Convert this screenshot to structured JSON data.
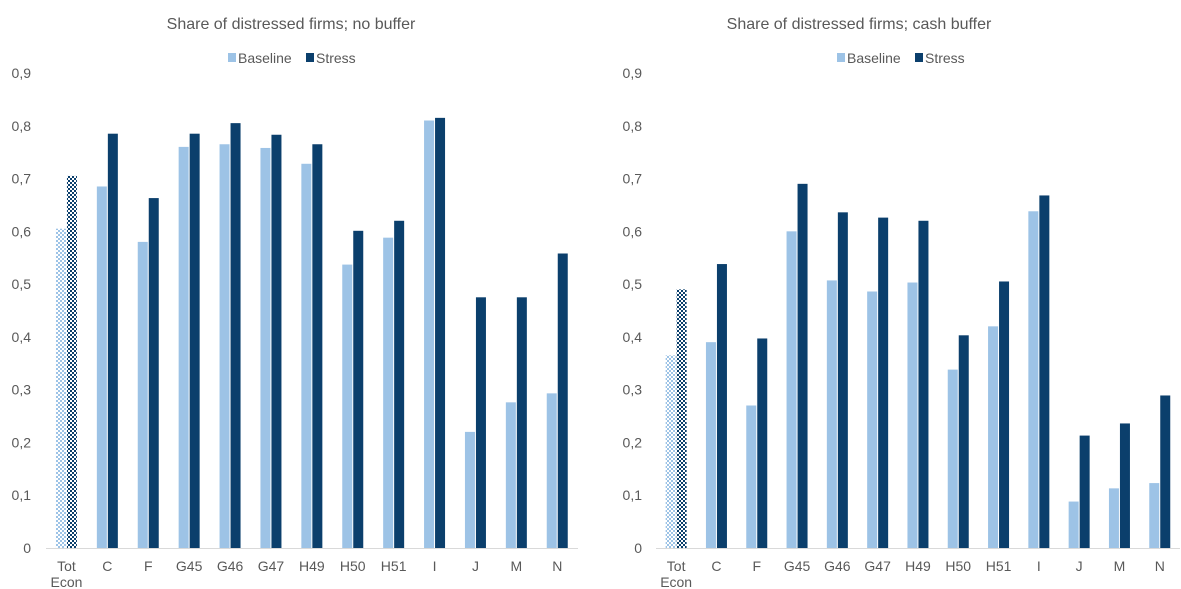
{
  "colors": {
    "baseline": "#9dc3e6",
    "stress": "#0b3f6c",
    "axis": "#d9d9d9",
    "text": "#595959"
  },
  "chart_data": [
    {
      "type": "bar",
      "title": "Share of distressed firms; no buffer",
      "legend": {
        "position": "top",
        "entries": [
          "Baseline",
          "Stress"
        ]
      },
      "categories": [
        [
          "Tot",
          "Econ"
        ],
        [
          "C"
        ],
        [
          "F"
        ],
        [
          "G45"
        ],
        [
          "G46"
        ],
        [
          "G47"
        ],
        [
          "H49"
        ],
        [
          "H50"
        ],
        [
          "H51"
        ],
        [
          "I"
        ],
        [
          "J"
        ],
        [
          "M"
        ],
        [
          "N"
        ]
      ],
      "series": [
        {
          "name": "Baseline",
          "values": [
            0.605,
            0.685,
            0.58,
            0.76,
            0.765,
            0.758,
            0.728,
            0.537,
            0.588,
            0.81,
            0.22,
            0.276,
            0.293
          ]
        },
        {
          "name": "Stress",
          "values": [
            0.705,
            0.785,
            0.663,
            0.785,
            0.805,
            0.783,
            0.765,
            0.601,
            0.62,
            0.815,
            0.475,
            0.475,
            0.558
          ]
        }
      ],
      "patterned_categories": [
        0
      ],
      "ylim": [
        0,
        0.9
      ],
      "yticks": [
        "0",
        "0,1",
        "0,2",
        "0,3",
        "0,4",
        "0,5",
        "0,6",
        "0,7",
        "0,8",
        "0,9"
      ],
      "grid": false
    },
    {
      "type": "bar",
      "title": "Share of distressed firms; cash buffer",
      "legend": {
        "position": "top",
        "entries": [
          "Baseline",
          "Stress"
        ]
      },
      "categories": [
        [
          "Tot",
          "Econ"
        ],
        [
          "C"
        ],
        [
          "F"
        ],
        [
          "G45"
        ],
        [
          "G46"
        ],
        [
          "G47"
        ],
        [
          "H49"
        ],
        [
          "H50"
        ],
        [
          "H51"
        ],
        [
          "I"
        ],
        [
          "J"
        ],
        [
          "M"
        ],
        [
          "N"
        ]
      ],
      "series": [
        {
          "name": "Baseline",
          "values": [
            0.365,
            0.39,
            0.27,
            0.6,
            0.507,
            0.486,
            0.503,
            0.338,
            0.42,
            0.638,
            0.088,
            0.113,
            0.123
          ]
        },
        {
          "name": "Stress",
          "values": [
            0.49,
            0.538,
            0.397,
            0.69,
            0.636,
            0.626,
            0.62,
            0.403,
            0.505,
            0.668,
            0.213,
            0.236,
            0.289
          ]
        }
      ],
      "patterned_categories": [
        0
      ],
      "ylim": [
        0,
        0.9
      ],
      "yticks": [
        "0",
        "0,1",
        "0,2",
        "0,3",
        "0,4",
        "0,5",
        "0,6",
        "0,7",
        "0,8",
        "0,9"
      ],
      "grid": false
    }
  ]
}
